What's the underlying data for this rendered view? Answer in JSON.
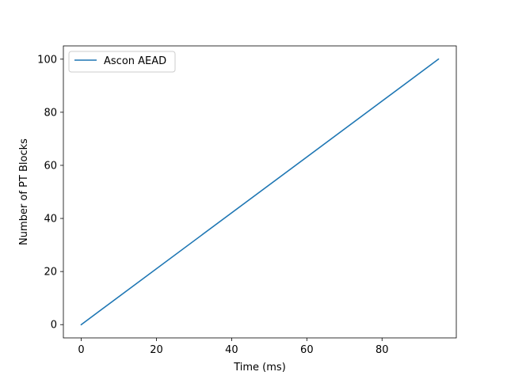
{
  "chart_data": {
    "type": "line",
    "title": "",
    "xlabel": "Time (ms)",
    "ylabel": "Number of PT Blocks",
    "xlim": [
      -4.75,
      99.75
    ],
    "ylim": [
      -5,
      105
    ],
    "x_ticks": [
      0,
      20,
      40,
      60,
      80
    ],
    "y_ticks": [
      0,
      20,
      40,
      60,
      80,
      100
    ],
    "grid": false,
    "legend": {
      "position": "top-left"
    },
    "series": [
      {
        "name": "Ascon AEAD",
        "color": "#1f77b4",
        "x": [
          0,
          95
        ],
        "y": [
          0,
          100
        ]
      }
    ]
  }
}
